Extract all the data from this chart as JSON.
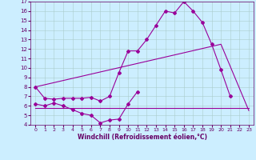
{
  "xlabel": "Windchill (Refroidissement éolien,°C)",
  "bg_color": "#cceeff",
  "grid_color": "#aacccc",
  "line_color": "#990099",
  "xlim": [
    -0.5,
    23.5
  ],
  "ylim": [
    4,
    17
  ],
  "xticks": [
    0,
    1,
    2,
    3,
    4,
    5,
    6,
    7,
    8,
    9,
    10,
    11,
    12,
    13,
    14,
    15,
    16,
    17,
    18,
    19,
    20,
    21,
    22,
    23
  ],
  "yticks": [
    4,
    5,
    6,
    7,
    8,
    9,
    10,
    11,
    12,
    13,
    14,
    15,
    16,
    17
  ],
  "line1_x": [
    0,
    1,
    2,
    3,
    4,
    5,
    6,
    7,
    8,
    9,
    10,
    11,
    12,
    13,
    14,
    15,
    16,
    17,
    18,
    19,
    20,
    21
  ],
  "line1_y": [
    8.0,
    6.8,
    6.7,
    6.8,
    6.8,
    6.8,
    6.9,
    6.5,
    7.0,
    9.5,
    11.8,
    11.8,
    13.0,
    14.5,
    16.0,
    15.8,
    17.0,
    16.0,
    14.8,
    12.5,
    9.8,
    7.0
  ],
  "line2_x": [
    0,
    20,
    23
  ],
  "line2_y": [
    8.0,
    12.5,
    5.5
  ],
  "line3_x": [
    0,
    1,
    2,
    3,
    4,
    5,
    6,
    7,
    8,
    9,
    10,
    11
  ],
  "line3_y": [
    6.2,
    6.0,
    6.3,
    6.0,
    5.6,
    5.2,
    5.0,
    4.2,
    4.5,
    4.6,
    6.2,
    7.5
  ],
  "line4_x": [
    0,
    23
  ],
  "line4_y": [
    5.8,
    5.8
  ],
  "marker_style": "D",
  "marker_size": 2.0,
  "line_width": 0.8,
  "xlabel_fontsize": 5.5,
  "tick_fontsize": 4.5,
  "tick_color": "#660066",
  "xlabel_color": "#660066"
}
